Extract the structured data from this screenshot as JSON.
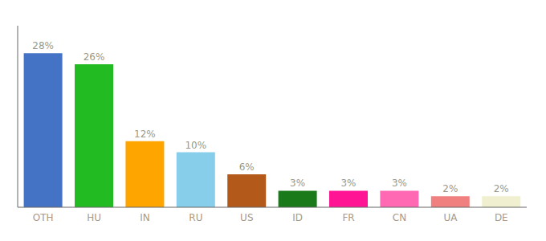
{
  "chart_data": {
    "type": "bar",
    "categories": [
      "OTH",
      "HU",
      "IN",
      "RU",
      "US",
      "ID",
      "FR",
      "CN",
      "UA",
      "DE"
    ],
    "values": [
      28,
      26,
      12,
      10,
      6,
      3,
      3,
      3,
      2,
      2
    ],
    "colors": [
      "#4472c4",
      "#22bb22",
      "#ffa500",
      "#87ceeb",
      "#b35a1a",
      "#1a7a1a",
      "#ff1493",
      "#ff69b4",
      "#f08080",
      "#f0f0d0"
    ],
    "ylim": [
      0,
      33
    ],
    "data_labels": true,
    "value_labels": [
      "28%",
      "26%",
      "12%",
      "10%",
      "6%",
      "3%",
      "3%",
      "3%",
      "2%",
      "2%"
    ],
    "tick_labels": "x",
    "grid": false
  }
}
